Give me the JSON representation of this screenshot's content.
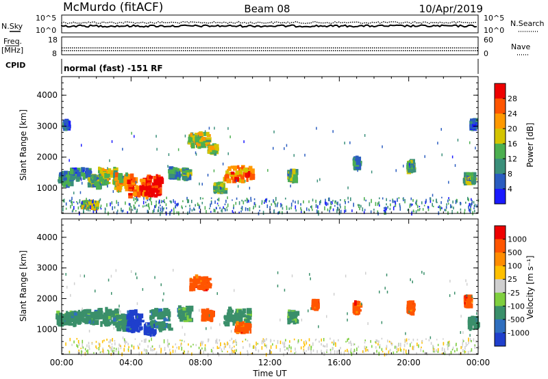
{
  "header": {
    "station": "McMurdo (fitACF)",
    "beam": "Beam 08",
    "date": "10/Apr/2019"
  },
  "status_panels": {
    "nsky_label": "N.Sky",
    "nsearch_label": "N.Search",
    "freq_label_1": "Freq.",
    "freq_label_2": "[MHz]",
    "nave_label": "Nave",
    "cpid_label": "CPID",
    "cpid_text": "normal (fast) -151 RF",
    "noise_left_ticks": [
      "10^5",
      "10^0"
    ],
    "noise_right_ticks": [
      "10^5",
      "10^0"
    ],
    "freq_left_ticks": [
      "18",
      "8"
    ],
    "freq_right_ticks": [
      "60",
      "0"
    ]
  },
  "chart_data": [
    {
      "type": "heatmap",
      "panel": "power",
      "ylabel": "Slant Range [km]",
      "xlabel": "",
      "ylim": [
        180,
        4600
      ],
      "xlim": [
        0,
        24
      ],
      "x_ticks": [
        "00:00",
        "04:00",
        "08:00",
        "12:00",
        "16:00",
        "20:00",
        "00:00"
      ],
      "y_ticks": [
        1000,
        2000,
        3000,
        4000
      ],
      "colorbar": {
        "label": "Power [dB]",
        "ticks": [
          4,
          8,
          12,
          16,
          20,
          24,
          28
        ],
        "range": [
          0,
          32
        ],
        "colors": [
          "#1a1aff",
          "#2a5cc0",
          "#3a8f7a",
          "#4caf50",
          "#d4c400",
          "#ff9900",
          "#ff5500",
          "#ee0000"
        ]
      },
      "blobs": [
        {
          "t": 0.1,
          "r": 1300,
          "dt": 0.5,
          "dr": 250,
          "v": 10
        },
        {
          "t": 0.15,
          "r": 3050,
          "dt": 0.15,
          "dr": 150,
          "v": 6
        },
        {
          "t": 1.0,
          "r": 1450,
          "dt": 0.8,
          "dr": 200,
          "v": 9
        },
        {
          "t": 1.9,
          "r": 1200,
          "dt": 0.6,
          "dr": 200,
          "v": 13
        },
        {
          "t": 2.6,
          "r": 1400,
          "dt": 0.8,
          "dr": 300,
          "v": 17
        },
        {
          "t": 3.5,
          "r": 1200,
          "dt": 0.7,
          "dr": 300,
          "v": 20
        },
        {
          "t": 4.3,
          "r": 1000,
          "dt": 0.8,
          "dr": 350,
          "v": 26
        },
        {
          "t": 5.2,
          "r": 1050,
          "dt": 0.6,
          "dr": 400,
          "v": 30
        },
        {
          "t": 6.4,
          "r": 1500,
          "dt": 0.4,
          "dr": 200,
          "v": 12
        },
        {
          "t": 7.1,
          "r": 1450,
          "dt": 0.3,
          "dr": 200,
          "v": 11
        },
        {
          "t": 7.8,
          "r": 2550,
          "dt": 0.8,
          "dr": 250,
          "v": 16
        },
        {
          "t": 8.6,
          "r": 2250,
          "dt": 0.3,
          "dr": 150,
          "v": 17
        },
        {
          "t": 9.0,
          "r": 1000,
          "dt": 0.4,
          "dr": 150,
          "v": 14
        },
        {
          "t": 10.1,
          "r": 1450,
          "dt": 1.2,
          "dr": 300,
          "v": 24
        },
        {
          "t": 13.2,
          "r": 1400,
          "dt": 0.3,
          "dr": 200,
          "v": 12
        },
        {
          "t": 16.9,
          "r": 1800,
          "dt": 0.2,
          "dr": 200,
          "v": 10
        },
        {
          "t": 20.0,
          "r": 1700,
          "dt": 0.2,
          "dr": 200,
          "v": 13
        },
        {
          "t": 23.4,
          "r": 1300,
          "dt": 0.4,
          "dr": 200,
          "v": 12
        },
        {
          "t": 23.6,
          "r": 3050,
          "dt": 0.15,
          "dr": 150,
          "v": 6
        },
        {
          "t": 1.5,
          "r": 450,
          "dt": 0.6,
          "dr": 150,
          "v": 18
        }
      ]
    },
    {
      "type": "heatmap",
      "panel": "velocity",
      "ylabel": "Slant Range [km]",
      "xlabel": "Time UT",
      "ylim": [
        180,
        4600
      ],
      "xlim": [
        0,
        24
      ],
      "x_ticks": [
        "00:00",
        "04:00",
        "08:00",
        "12:00",
        "16:00",
        "20:00",
        "00:00"
      ],
      "y_ticks": [
        1000,
        2000,
        3000,
        4000
      ],
      "colorbar": {
        "label": "Velocity [m s⁻¹]",
        "ticks": [
          "1000",
          "500",
          "100",
          "25",
          "-25",
          "-100",
          "-500",
          "-1000"
        ],
        "colors": [
          "#1f3fcc",
          "#2f6fbf",
          "#3a8f6a",
          "#7fcf3f",
          "#cfcfcf",
          "#ffc000",
          "#ff8c00",
          "#ff5500",
          "#ee0000"
        ]
      },
      "blobs": [
        {
          "t": 0.2,
          "r": 1350,
          "dt": 0.8,
          "dr": 250,
          "v": 2
        },
        {
          "t": 1.3,
          "r": 1400,
          "dt": 0.9,
          "dr": 250,
          "v": 2
        },
        {
          "t": 2.6,
          "r": 1400,
          "dt": 0.8,
          "dr": 300,
          "v": 2
        },
        {
          "t": 3.5,
          "r": 1200,
          "dt": 0.6,
          "dr": 300,
          "v": 2
        },
        {
          "t": 4.1,
          "r": 1250,
          "dt": 0.6,
          "dr": 400,
          "v": 0
        },
        {
          "t": 5.0,
          "r": 1000,
          "dt": 0.4,
          "dr": 200,
          "v": 0
        },
        {
          "t": 5.6,
          "r": 1300,
          "dt": 0.8,
          "dr": 400,
          "v": 2
        },
        {
          "t": 7.0,
          "r": 1500,
          "dt": 0.5,
          "dr": 250,
          "v": 2
        },
        {
          "t": 7.9,
          "r": 2500,
          "dt": 0.8,
          "dr": 250,
          "v": 7
        },
        {
          "t": 8.3,
          "r": 1450,
          "dt": 0.4,
          "dr": 200,
          "v": 7
        },
        {
          "t": 10.0,
          "r": 1400,
          "dt": 1.0,
          "dr": 300,
          "v": 2
        },
        {
          "t": 10.3,
          "r": 1050,
          "dt": 0.5,
          "dr": 150,
          "v": 7
        },
        {
          "t": 13.2,
          "r": 1400,
          "dt": 0.3,
          "dr": 200,
          "v": 2
        },
        {
          "t": 14.5,
          "r": 1800,
          "dt": 0.2,
          "dr": 150,
          "v": 7
        },
        {
          "t": 16.9,
          "r": 1700,
          "dt": 0.2,
          "dr": 200,
          "v": 7
        },
        {
          "t": 20.0,
          "r": 1700,
          "dt": 0.2,
          "dr": 200,
          "v": 7
        },
        {
          "t": 23.3,
          "r": 1900,
          "dt": 0.2,
          "dr": 200,
          "v": 7
        },
        {
          "t": 23.6,
          "r": 1200,
          "dt": 0.3,
          "dr": 200,
          "v": 2
        }
      ]
    }
  ]
}
